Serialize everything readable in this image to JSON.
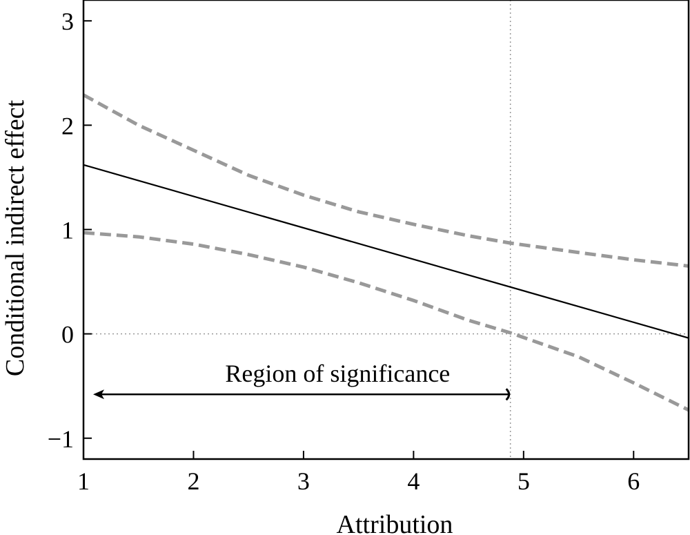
{
  "chart_data": {
    "type": "line",
    "xlabel": "Attribution",
    "ylabel": "Conditional indirect effect",
    "xlim": [
      1,
      6.5
    ],
    "ylim": [
      -1.2,
      3.2
    ],
    "xticks": [
      1,
      2,
      3,
      4,
      5,
      6
    ],
    "yticks": [
      -1,
      0,
      1,
      2,
      3
    ],
    "ytick_labels": [
      "−1",
      "0",
      "1",
      "2",
      "3"
    ],
    "grid": false,
    "series": [
      {
        "role": "estimate",
        "style": "solid",
        "color": "#000000",
        "x": [
          1,
          6.5
        ],
        "y": [
          1.62,
          -0.04
        ]
      },
      {
        "role": "upper-ci",
        "style": "dashed",
        "color": "#999999",
        "x": [
          1,
          1.5,
          2,
          2.5,
          3,
          3.5,
          4,
          4.5,
          4.88,
          5.5,
          6,
          6.5
        ],
        "y": [
          2.29,
          2.0,
          1.76,
          1.52,
          1.33,
          1.17,
          1.05,
          0.94,
          0.87,
          0.78,
          0.71,
          0.65
        ]
      },
      {
        "role": "lower-ci",
        "style": "dashed",
        "color": "#999999",
        "x": [
          1,
          1.5,
          2,
          2.5,
          3,
          3.5,
          4,
          4.5,
          4.88,
          5.5,
          6,
          6.5
        ],
        "y": [
          0.97,
          0.93,
          0.86,
          0.76,
          0.64,
          0.49,
          0.32,
          0.13,
          0.01,
          -0.22,
          -0.47,
          -0.73
        ]
      }
    ],
    "reference_lines": {
      "horizontal_y": 0,
      "vertical_x": 4.88
    },
    "annotations": [
      {
        "text": "Region of significance",
        "arrow_from_x": 4.88,
        "arrow_to_x": 1,
        "arrow_y": -0.58,
        "text_y": -0.38
      }
    ]
  }
}
